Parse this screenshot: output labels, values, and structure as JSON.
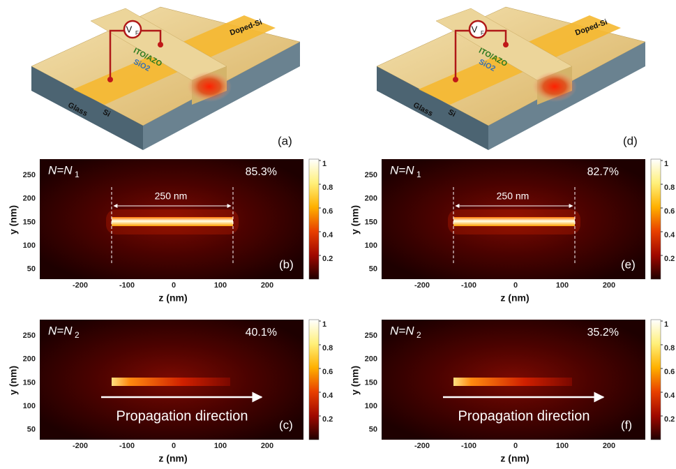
{
  "illustrations": [
    {
      "label": "(a)",
      "source": "V",
      "source_sub": "F",
      "doped": "Doped-Si",
      "ito": "ITO/AZO",
      "oxide": "SiO2",
      "substrate": "Glass",
      "core": "Si"
    },
    {
      "label": "(d)",
      "source": "V",
      "source_sub": "F",
      "doped": "Doped-Si",
      "ito": "ITO/AZO",
      "oxide": "SiO2",
      "substrate": "Glass",
      "core": "Si"
    }
  ],
  "axes": {
    "xlabel": "z (nm)",
    "ylabel": "y (nm)",
    "xticks": [
      "-200",
      "-100",
      "0",
      "100",
      "200"
    ],
    "yticks": [
      "250",
      "200",
      "150",
      "100",
      "50"
    ],
    "colorbar_ticks": [
      "1",
      "0.8",
      "0.6",
      "0.4",
      "0.2"
    ]
  },
  "panels": [
    {
      "label": "(b)",
      "n_symbol": "N=N",
      "n_sub": "1",
      "percent": "85.3%",
      "annotation": "250 nm"
    },
    {
      "label": "(c)",
      "n_symbol": "N=N",
      "n_sub": "2",
      "percent": "40.1%",
      "annotation": "Propagation direction"
    },
    {
      "label": "(e)",
      "n_symbol": "N=N",
      "n_sub": "1",
      "percent": "82.7%",
      "annotation": "250 nm"
    },
    {
      "label": "(f)",
      "n_symbol": "N=N",
      "n_sub": "2",
      "percent": "35.2%",
      "annotation": "Propagation direction"
    }
  ]
}
